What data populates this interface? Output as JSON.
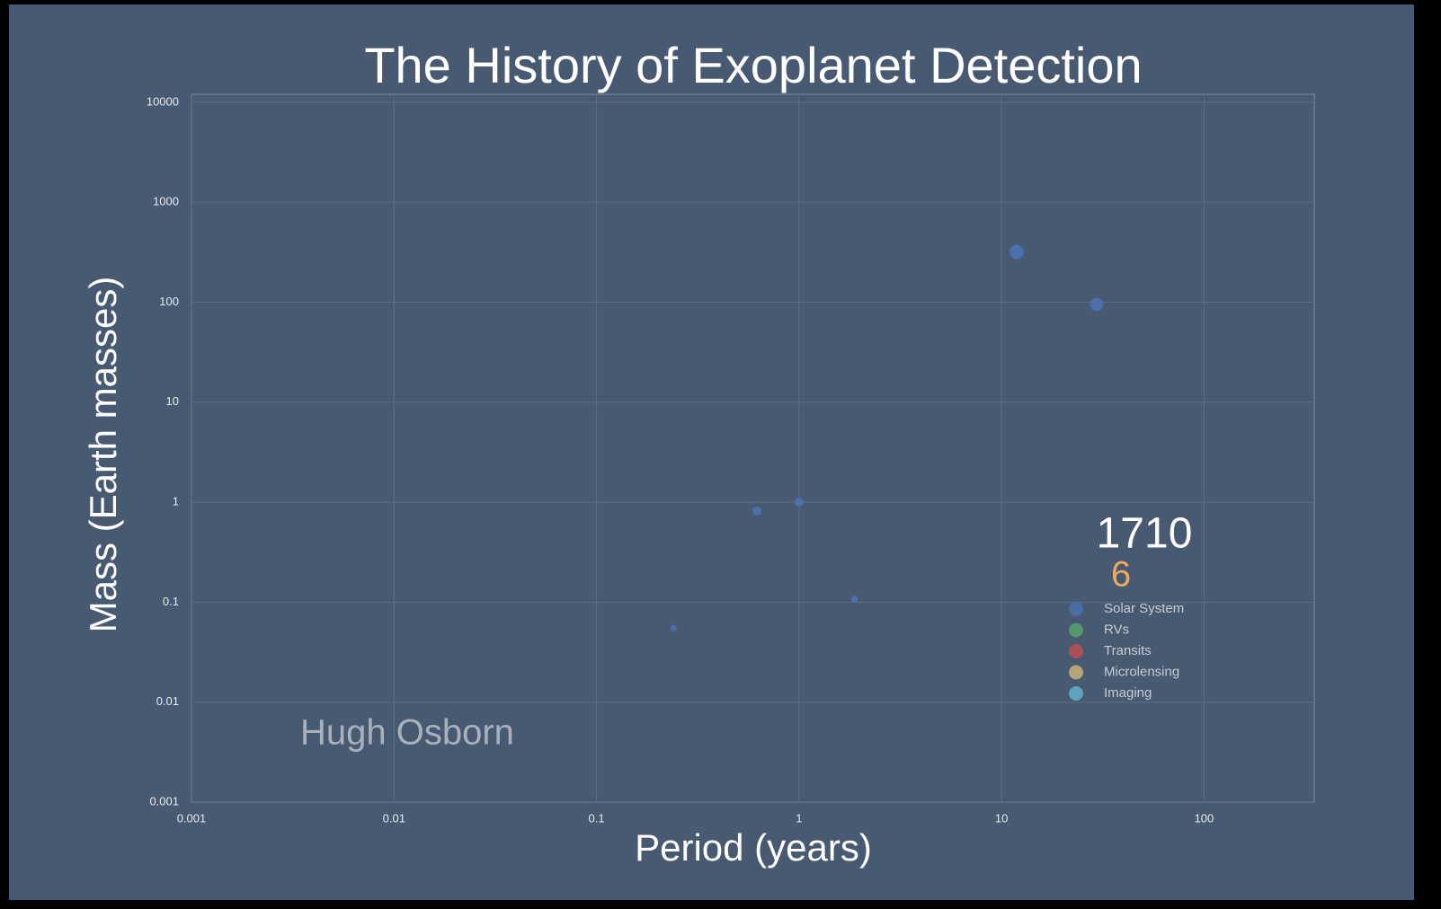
{
  "chart_data": {
    "type": "scatter",
    "title": "The History of Exoplanet Detection",
    "xlabel": "Period (years)",
    "ylabel": "Mass (Earth masses)",
    "log_x": true,
    "log_y": true,
    "grid": true,
    "xlim": [
      0.001,
      350
    ],
    "ylim": [
      0.001,
      12000
    ],
    "xticks": [
      0.001,
      0.01,
      0.1,
      1,
      10,
      100
    ],
    "yticks": [
      0.001,
      0.01,
      0.1,
      1,
      10,
      100,
      1000,
      10000
    ],
    "series": [
      {
        "name": "Solar System",
        "color": "#4c72b0",
        "x": [
          0.24,
          0.62,
          1,
          1.88,
          11.86,
          29.5
        ],
        "values": [
          0.055,
          0.82,
          1,
          0.107,
          318,
          95
        ]
      },
      {
        "name": "RVs",
        "color": "#55a868",
        "x": [],
        "values": []
      },
      {
        "name": "Transits",
        "color": "#c44e52",
        "x": [],
        "values": []
      },
      {
        "name": "Microlensing",
        "color": "#ccb974",
        "x": [],
        "values": []
      },
      {
        "name": "Imaging",
        "color": "#64b5cd",
        "x": [],
        "values": []
      }
    ],
    "year": "1710",
    "count": "6",
    "credit": "Hugh Osborn"
  }
}
